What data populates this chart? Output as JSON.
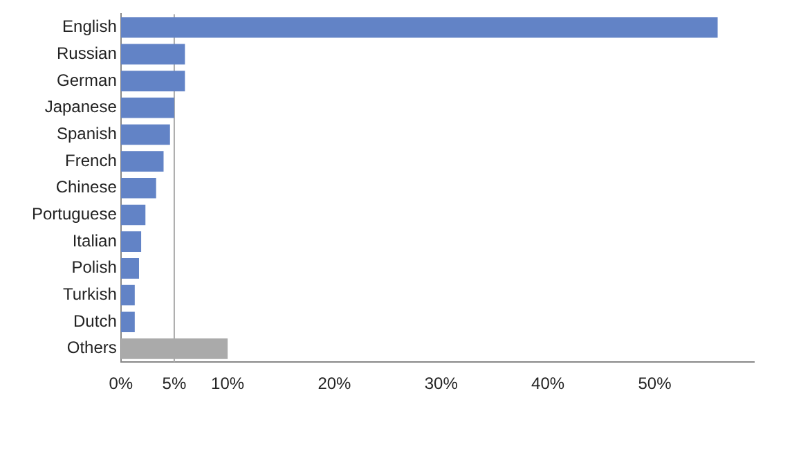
{
  "chart_data": {
    "type": "bar",
    "orientation": "horizontal",
    "categories": [
      "English",
      "Russian",
      "German",
      "Japanese",
      "Spanish",
      "French",
      "Chinese",
      "Portuguese",
      "Italian",
      "Polish",
      "Turkish",
      "Dutch",
      "Others"
    ],
    "values": [
      55.9,
      6.0,
      6.0,
      5.0,
      4.6,
      4.0,
      3.3,
      2.3,
      1.9,
      1.7,
      1.3,
      1.3,
      10.0
    ],
    "colors": [
      "#6283c6",
      "#6283c6",
      "#6283c6",
      "#6283c6",
      "#6283c6",
      "#6283c6",
      "#6283c6",
      "#6283c6",
      "#6283c6",
      "#6283c6",
      "#6283c6",
      "#6283c6",
      "#aaaaaa"
    ],
    "xlim": [
      0,
      59.3
    ],
    "xticks": [
      {
        "value": 0,
        "label": "0%"
      },
      {
        "value": 5,
        "label": "5%"
      },
      {
        "value": 10,
        "label": "10%"
      },
      {
        "value": 20,
        "label": "20%"
      },
      {
        "value": 30,
        "label": "30%"
      },
      {
        "value": 40,
        "label": "40%"
      },
      {
        "value": 50,
        "label": "50%"
      }
    ],
    "ref_lines": [
      {
        "axis": "x",
        "value": 5,
        "color": "#aaaaaa"
      }
    ],
    "grid": false,
    "legend": false
  }
}
